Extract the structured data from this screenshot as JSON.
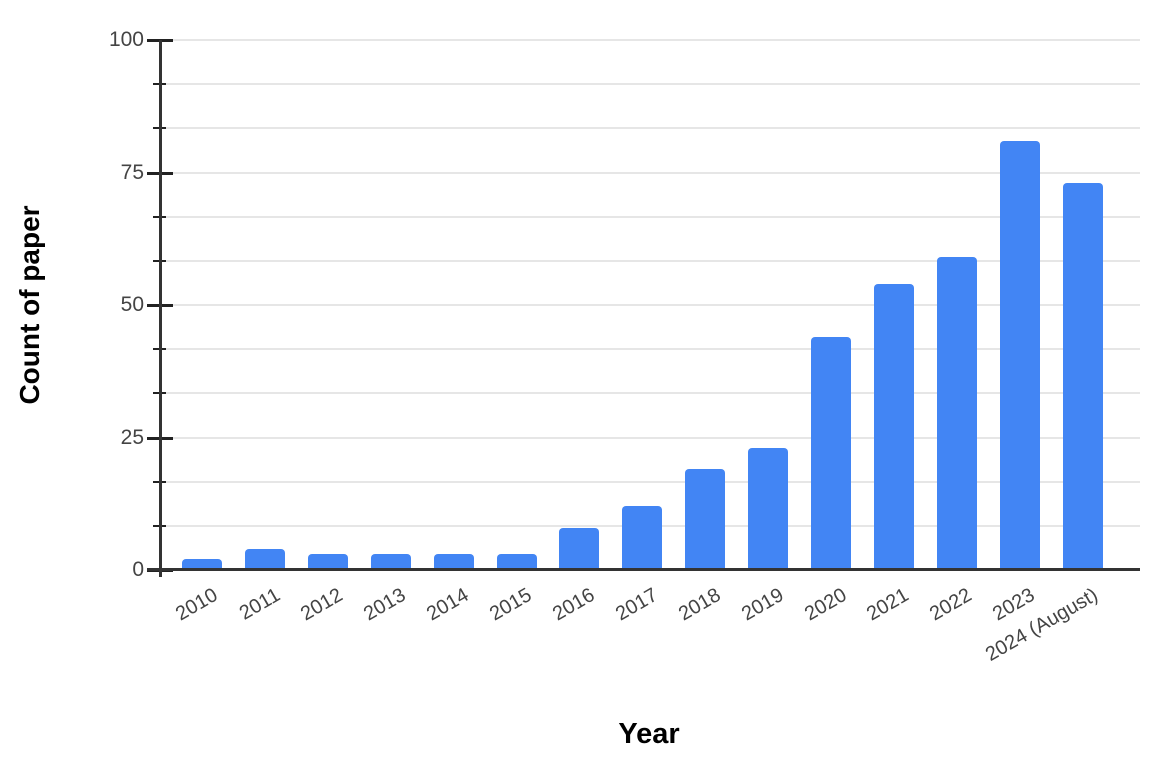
{
  "chart_data": {
    "type": "bar",
    "title": "",
    "xlabel": "Year",
    "ylabel": "Count of paper",
    "categories": [
      "2010",
      "2011",
      "2012",
      "2013",
      "2014",
      "2015",
      "2016",
      "2017",
      "2018",
      "2019",
      "2020",
      "2021",
      "2022",
      "2023",
      "2024 (August)"
    ],
    "values": [
      2,
      4,
      3,
      3,
      3,
      3,
      8,
      12,
      19,
      23,
      44,
      54,
      59,
      81,
      73
    ],
    "ylim": [
      0,
      100
    ],
    "yticks": [
      0,
      25,
      50,
      75,
      100
    ],
    "minor_divisions_per_major": 3,
    "grid": true,
    "legend_position": "none",
    "colors": {
      "bar": "#4285F4",
      "gridline": "#e6e6e6",
      "axis": "#333333",
      "tick": "#222222",
      "tick_label": "#444444",
      "title": "#000000",
      "background": "#ffffff"
    }
  }
}
